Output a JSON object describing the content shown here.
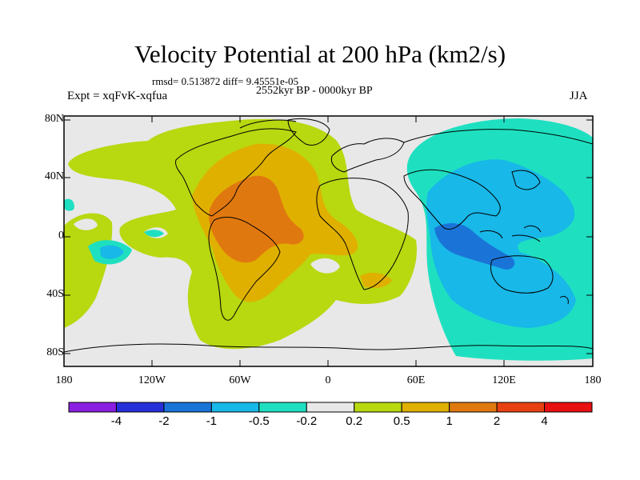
{
  "title": "Velocity Potential at 200 hPa (km2/s)",
  "stats": "rmsd= 0.513872 diff= 9.45551e-05",
  "period": "2552kyr BP - 0000kyr BP",
  "experiment": "Expt = xqFvK-xqfua",
  "season": "JJA",
  "y_ticks": [
    "80N",
    "40N",
    "0",
    "40S",
    "80S"
  ],
  "x_ticks": [
    "180",
    "120W",
    "60W",
    "0",
    "60E",
    "120E",
    "180"
  ],
  "colorbar": {
    "labels": [
      "-4",
      "-2",
      "-1",
      "-0.5",
      "-0.2",
      "0.2",
      "0.5",
      "1",
      "2",
      "4"
    ],
    "colors": [
      "#8a1fe0",
      "#2630d8",
      "#1a74d8",
      "#18b8e8",
      "#1ee0c0",
      "#e8e8e8",
      "#b8d810",
      "#e0b000",
      "#e07810",
      "#e84010",
      "#e81010"
    ]
  }
}
